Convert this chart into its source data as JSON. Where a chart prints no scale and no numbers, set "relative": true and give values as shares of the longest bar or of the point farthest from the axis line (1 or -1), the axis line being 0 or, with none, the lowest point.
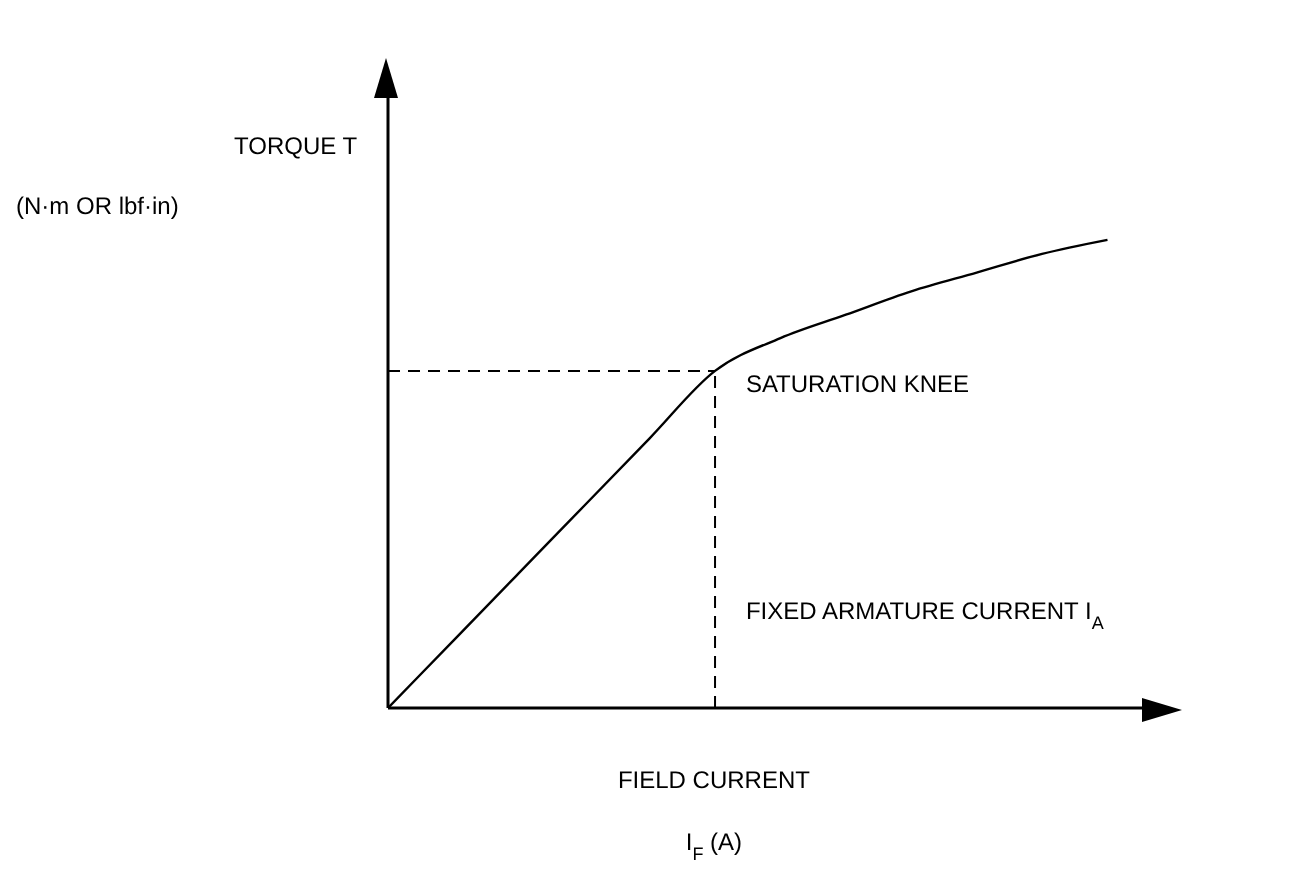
{
  "chart_data": {
    "type": "line",
    "relative": true,
    "ylabel": "TORQUE T\n(N·m OR lbf·in)",
    "xlabel": "FIELD CURRENT\nI$_{F}$ (A)",
    "categories": [
      null,
      null,
      null,
      null,
      null,
      null,
      null,
      null,
      null,
      null,
      null,
      null
    ],
    "series": [
      {
        "color": "#000000",
        "values": [
          0,
          0.144,
          0.288,
          0.432,
          0.576,
          0.72,
          0.79,
          0.84,
          0.89,
          0.93,
          0.97,
          1.0
        ]
      }
    ],
    "ref_lines": [
      {
        "axis": "y",
        "value": 0.72,
        "line_style": "dashed",
        "color": "#000000"
      }
    ],
    "annotations": [
      "SATURATION KNEE",
      "FIXED ARMATURE CURRENT I$_{A}$"
    ],
    "grid": false,
    "legend": false,
    "marker": "none",
    "line_style": "solid"
  }
}
